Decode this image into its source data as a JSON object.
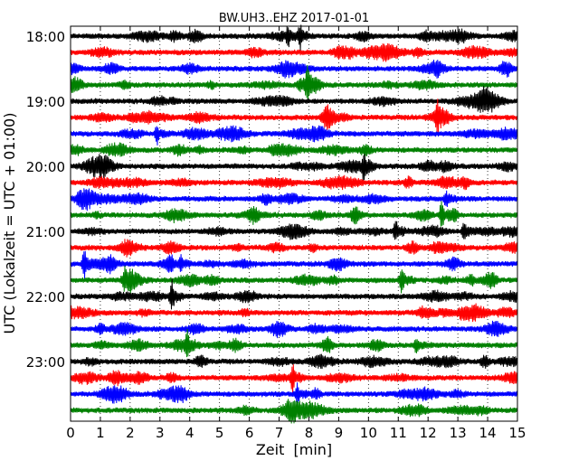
{
  "chart_data": {
    "type": "line",
    "title": "BW.UH3..EHZ 2017-01-01",
    "xlabel": "Zeit  [min]",
    "ylabel": "UTC (Lokalzeit = UTC + 01:00)",
    "xlim": [
      0,
      15
    ],
    "x_ticks": [
      "0",
      "1",
      "2",
      "3",
      "4",
      "5",
      "6",
      "7",
      "8",
      "9",
      "10",
      "11",
      "12",
      "13",
      "14",
      "15"
    ],
    "y_tick_labels": [
      "18:00",
      "19:00",
      "20:00",
      "21:00",
      "22:00",
      "23:00"
    ],
    "grid": "vertical dotted",
    "series_colors": [
      "#000000",
      "#ff0000",
      "#0000ff",
      "#008000"
    ],
    "traces": [
      {
        "start": "18:00",
        "color": "#000000",
        "events": [
          {
            "t": 7.3,
            "amp": 1.6
          },
          {
            "t": 7.7,
            "amp": 2.2
          }
        ]
      },
      {
        "start": "18:15",
        "color": "#ff0000",
        "events": []
      },
      {
        "start": "18:30",
        "color": "#0000ff",
        "events": []
      },
      {
        "start": "18:45",
        "color": "#008000",
        "events": [
          {
            "t": 7.95,
            "amp": 2.6
          }
        ]
      },
      {
        "start": "19:00",
        "color": "#000000",
        "events": []
      },
      {
        "start": "19:15",
        "color": "#ff0000",
        "events": [
          {
            "t": 12.3,
            "amp": 2.4
          }
        ]
      },
      {
        "start": "19:30",
        "color": "#0000ff",
        "events": [
          {
            "t": 2.9,
            "amp": 1.7
          }
        ]
      },
      {
        "start": "19:45",
        "color": "#008000",
        "events": []
      },
      {
        "start": "20:00",
        "color": "#000000",
        "events": [
          {
            "t": 9.85,
            "amp": 2.6
          }
        ]
      },
      {
        "start": "20:15",
        "color": "#ff0000",
        "events": []
      },
      {
        "start": "20:30",
        "color": "#0000ff",
        "events": [
          {
            "t": 12.6,
            "amp": 1.6
          }
        ]
      },
      {
        "start": "20:45",
        "color": "#008000",
        "events": [
          {
            "t": 12.45,
            "amp": 2.6
          }
        ]
      },
      {
        "start": "21:00",
        "color": "#000000",
        "events": [
          {
            "t": 10.9,
            "amp": 2.2
          },
          {
            "t": 13.2,
            "amp": 1.5
          }
        ]
      },
      {
        "start": "21:15",
        "color": "#ff0000",
        "events": []
      },
      {
        "start": "21:30",
        "color": "#0000ff",
        "events": [
          {
            "t": 0.45,
            "amp": 2.6
          },
          {
            "t": 3.7,
            "amp": 1.6
          }
        ]
      },
      {
        "start": "21:45",
        "color": "#008000",
        "events": [
          {
            "t": 1.8,
            "amp": 1.5
          },
          {
            "t": 11.1,
            "amp": 2.8
          }
        ]
      },
      {
        "start": "22:00",
        "color": "#000000",
        "events": [
          {
            "t": 3.4,
            "amp": 2.2
          }
        ]
      },
      {
        "start": "22:15",
        "color": "#ff0000",
        "events": []
      },
      {
        "start": "22:30",
        "color": "#0000ff",
        "events": []
      },
      {
        "start": "22:45",
        "color": "#008000",
        "events": [
          {
            "t": 3.9,
            "amp": 2.0
          },
          {
            "t": 11.6,
            "amp": 1.4
          }
        ]
      },
      {
        "start": "23:00",
        "color": "#000000",
        "events": []
      },
      {
        "start": "23:15",
        "color": "#ff0000",
        "events": [
          {
            "t": 7.45,
            "amp": 2.4
          }
        ]
      },
      {
        "start": "23:30",
        "color": "#0000ff",
        "events": [
          {
            "t": 7.6,
            "amp": 1.9
          }
        ]
      },
      {
        "start": "23:45",
        "color": "#008000",
        "events": []
      }
    ]
  }
}
